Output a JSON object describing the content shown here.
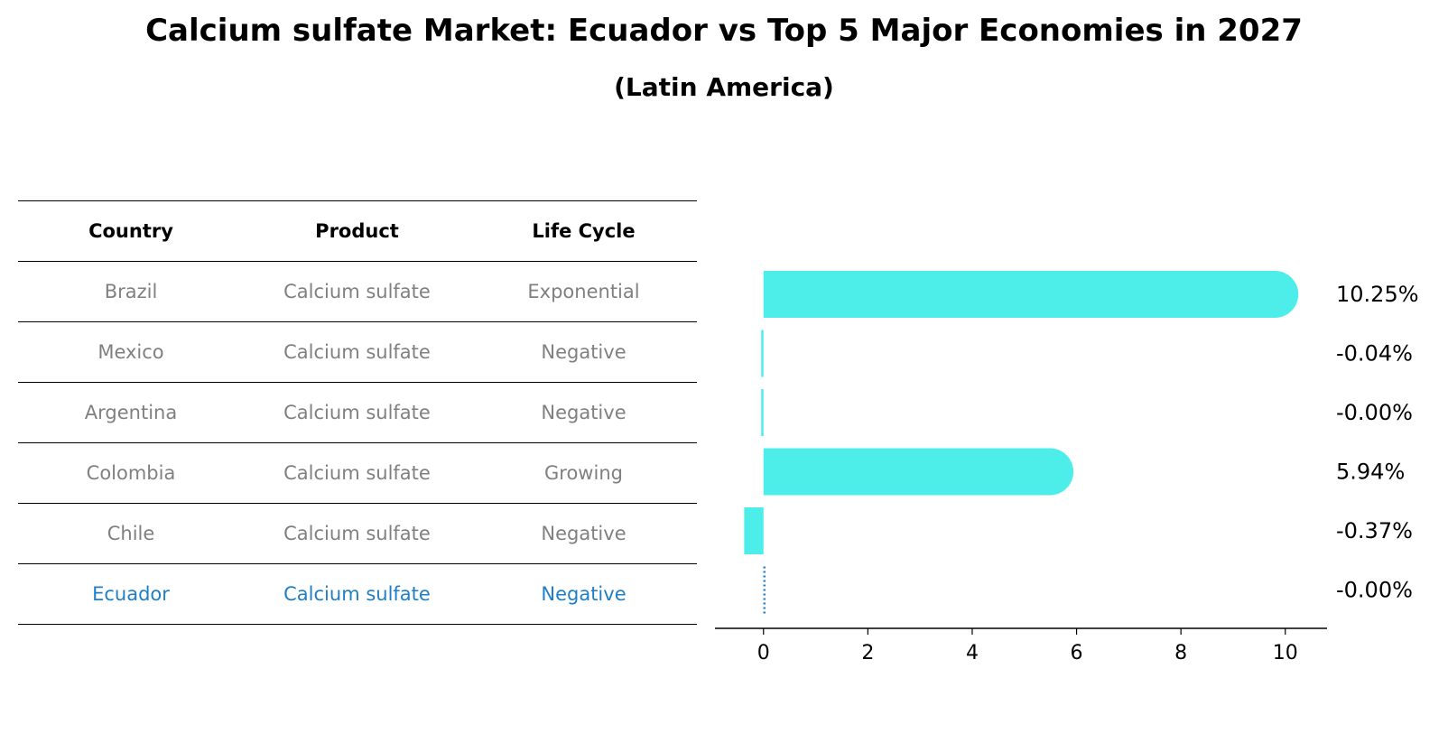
{
  "title": "Calcium sulfate Market: Ecuador vs Top 5 Major Economies in 2027",
  "subtitle": "(Latin America)",
  "table": {
    "headers": [
      "Country",
      "Product",
      "Life Cycle"
    ],
    "rows": [
      [
        "Brazil",
        "Calcium sulfate",
        "Exponential"
      ],
      [
        "Mexico",
        "Calcium sulfate",
        "Negative"
      ],
      [
        "Argentina",
        "Calcium sulfate",
        "Negative"
      ],
      [
        "Colombia",
        "Calcium sulfate",
        "Growing"
      ],
      [
        "Chile",
        "Calcium sulfate",
        "Negative"
      ],
      [
        "Ecuador",
        "Calcium sulfate",
        "Negative"
      ]
    ],
    "highlight_row": 5
  },
  "chart_data": {
    "type": "bar",
    "orientation": "horizontal",
    "categories": [
      "Brazil",
      "Mexico",
      "Argentina",
      "Colombia",
      "Chile",
      "Ecuador"
    ],
    "values": [
      10.25,
      -0.04,
      -0.0,
      5.94,
      -0.37,
      -0.0
    ],
    "value_labels": [
      "10.25%",
      "-0.04%",
      "-0.00%",
      "5.94%",
      "-0.37%",
      "-0.00%"
    ],
    "xticks": [
      "0",
      "2",
      "4",
      "6",
      "8",
      "10"
    ],
    "xlim": [
      -0.93,
      10.8
    ],
    "bar_color": "#4deeea",
    "highlight_color": "#1f7fc6",
    "highlight_index": 5,
    "grid": false
  }
}
